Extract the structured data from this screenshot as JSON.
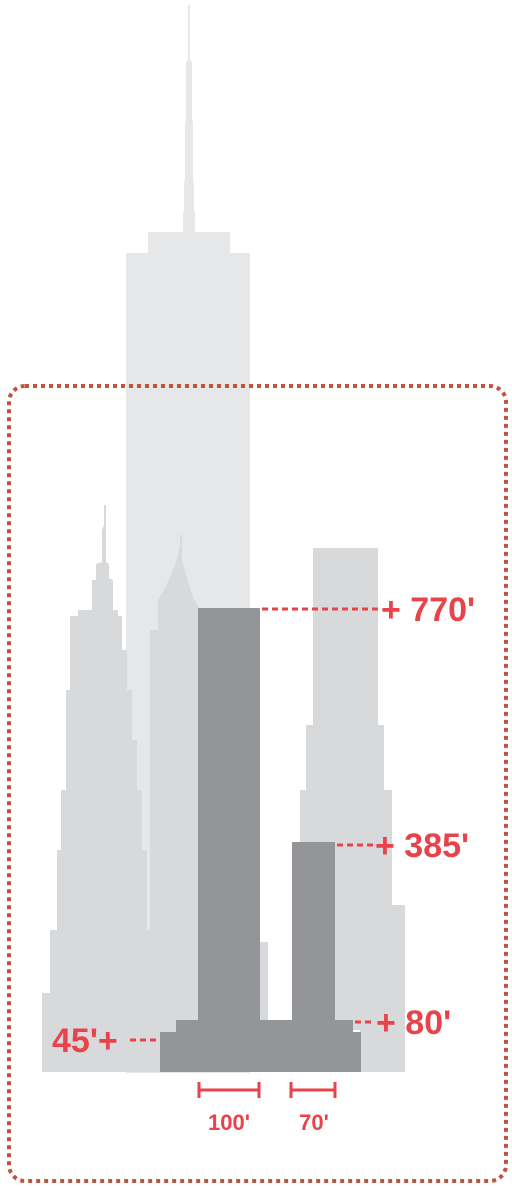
{
  "colors": {
    "tower_light": "#e6e7e8",
    "skyline": "#d8d9da",
    "proposed": "#939598",
    "accent": "#e8424b",
    "frame": "#c0553f"
  },
  "annotations": {
    "height_770": "+ 770'",
    "height_385": "+ 385'",
    "height_80": "+ 80'",
    "height_45": "45'+"
  },
  "dimensions": {
    "width_100": "100'",
    "width_70": "70'"
  }
}
